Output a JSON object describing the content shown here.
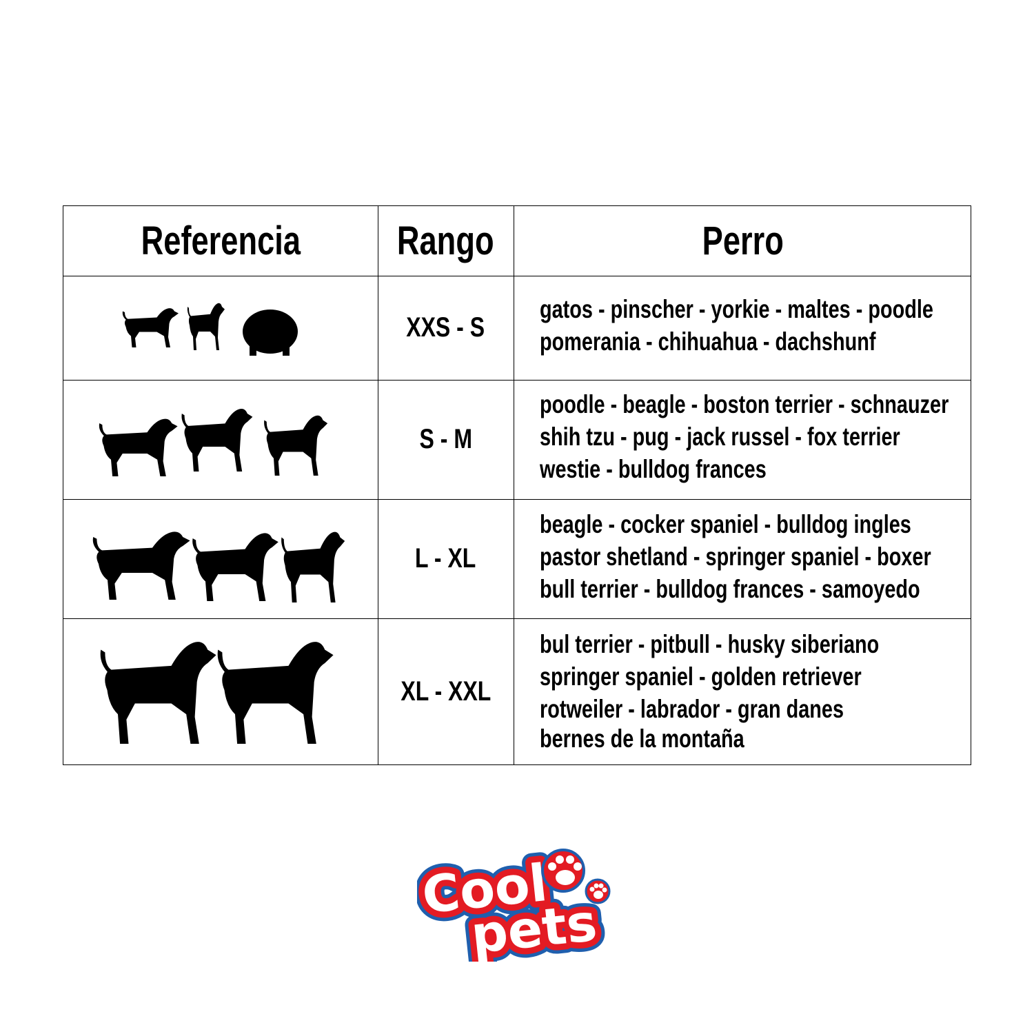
{
  "table": {
    "headers": [
      "Referencia",
      "Rango",
      "Perro"
    ],
    "rows": [
      {
        "reference_icon": "small-dogs-silhouettes-icon",
        "range": "XXS - S",
        "dogs": [
          "gatos - pinscher - yorkie - maltes - poodle",
          "pomerania - chihuahua - dachshunf"
        ]
      },
      {
        "reference_icon": "medium-dogs-silhouettes-icon",
        "range": "S - M",
        "dogs": [
          "poodle - beagle - boston terrier - schnauzer",
          "shih tzu - pug - jack russel - fox terrier",
          "westie - bulldog frances"
        ]
      },
      {
        "reference_icon": "large-dogs-silhouettes-icon",
        "range": "L - XL",
        "dogs": [
          "beagle - cocker spaniel - bulldog ingles",
          "pastor shetland - springer spaniel - boxer",
          "bull terrier - bulldog frances - samoyedo"
        ]
      },
      {
        "reference_icon": "xlarge-dogs-silhouettes-icon",
        "range": "XL - XXL",
        "dogs": [
          "bul terrier - pitbull - husky siberiano",
          "springer spaniel - golden retriever",
          "rotweiler - labrador - gran danes",
          "bernes de la montaña"
        ]
      }
    ]
  },
  "logo": {
    "text_line1": "Cool",
    "text_line2": "pets",
    "colors": {
      "fill": "#ffffff",
      "outline": "#e31b23",
      "outer": "#1f5fae"
    }
  }
}
